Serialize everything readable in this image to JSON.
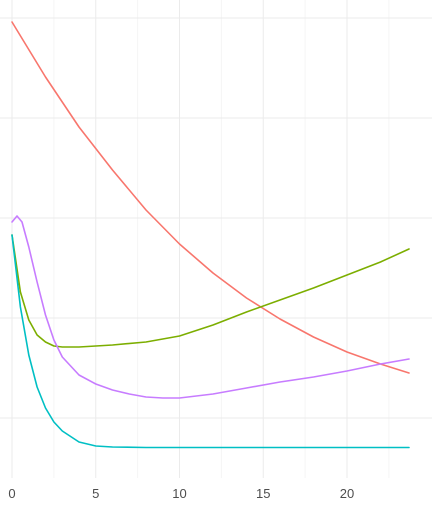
{
  "chart_data": {
    "type": "line",
    "title": "",
    "xlabel": "",
    "ylabel": "",
    "xlim": [
      0,
      24
    ],
    "ylim": [
      0,
      4.8
    ],
    "x_ticks": [
      0,
      5,
      10,
      15,
      20
    ],
    "x_tick_labels": [
      "0",
      "5",
      "10",
      "15",
      "20"
    ],
    "y_tick_labels_visible": false,
    "grid": true,
    "legend": "none",
    "series": [
      {
        "color": "#F8766D",
        "x": [
          0,
          2,
          4,
          6,
          8,
          10,
          12,
          14,
          16,
          18,
          20,
          22,
          23.7
        ],
        "y": [
          4.4,
          3.85,
          3.35,
          2.92,
          2.52,
          2.18,
          1.89,
          1.64,
          1.43,
          1.25,
          1.1,
          0.98,
          0.89
        ]
      },
      {
        "color": "#7CAE00",
        "x": [
          0,
          0.5,
          1,
          1.5,
          2,
          2.5,
          3,
          4,
          5,
          6,
          8,
          10,
          12,
          14,
          16,
          18,
          20,
          22,
          23.7
        ],
        "y": [
          2.27,
          1.7,
          1.42,
          1.27,
          1.2,
          1.16,
          1.15,
          1.15,
          1.16,
          1.17,
          1.2,
          1.26,
          1.37,
          1.5,
          1.62,
          1.74,
          1.87,
          2.0,
          2.13
        ]
      },
      {
        "color": "#00BFC4",
        "x": [
          0,
          0.5,
          1,
          1.5,
          2,
          2.5,
          3,
          4,
          5,
          6,
          8,
          10,
          15,
          20,
          23.7
        ],
        "y": [
          2.27,
          1.55,
          1.07,
          0.75,
          0.54,
          0.4,
          0.31,
          0.2,
          0.16,
          0.15,
          0.145,
          0.145,
          0.145,
          0.145,
          0.145
        ]
      },
      {
        "color": "#C77CFF",
        "x": [
          0,
          0.3,
          0.6,
          1,
          1.5,
          2,
          2.5,
          3,
          4,
          5,
          6,
          7,
          8,
          9,
          10,
          12,
          14,
          16,
          18,
          20,
          22,
          23.7
        ],
        "y": [
          2.4,
          2.46,
          2.4,
          2.15,
          1.8,
          1.47,
          1.22,
          1.05,
          0.87,
          0.78,
          0.72,
          0.68,
          0.65,
          0.64,
          0.64,
          0.68,
          0.74,
          0.8,
          0.85,
          0.91,
          0.98,
          1.03
        ]
      }
    ]
  }
}
